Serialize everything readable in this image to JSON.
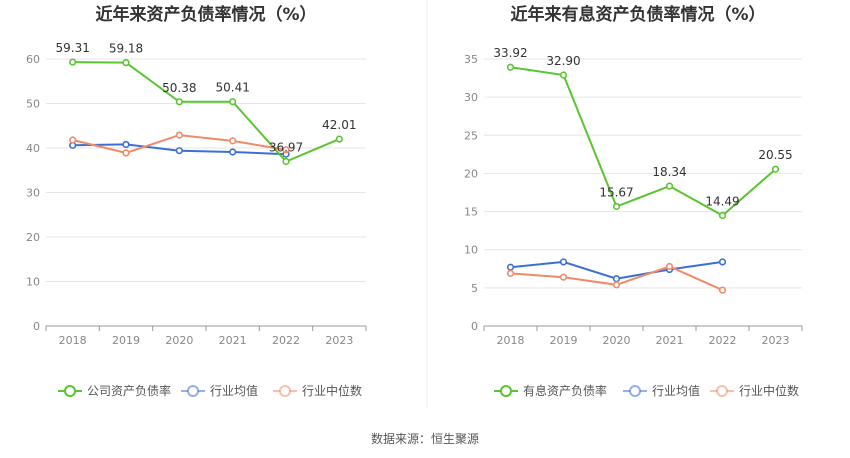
{
  "colors": {
    "company": "#5ac532",
    "industry_avg": "#3b6fd6",
    "industry_median": "#f08a68"
  },
  "source": "数据来源：恒生聚源",
  "chart_data": [
    {
      "type": "line",
      "title": "近年来资产负债率情况（%）",
      "categories": [
        "2018",
        "2019",
        "2020",
        "2021",
        "2022",
        "2023"
      ],
      "ylim": [
        0,
        60
      ],
      "yticks": [
        0,
        10,
        20,
        30,
        40,
        50,
        60
      ],
      "grid": true,
      "legend_position": "bottom",
      "series": [
        {
          "name": "公司资产负债率",
          "color": "#5ac532",
          "values": [
            59.31,
            59.18,
            50.38,
            50.41,
            36.97,
            42.01
          ],
          "labels": [
            "59.31",
            "59.18",
            "50.38",
            "50.41",
            "36.97",
            "42.01"
          ]
        },
        {
          "name": "行业均值",
          "color": "#3b6fd6",
          "values": [
            40.6,
            40.8,
            39.4,
            39.1,
            38.6,
            null
          ]
        },
        {
          "name": "行业中位数",
          "color": "#f08a68",
          "values": [
            41.8,
            38.9,
            42.9,
            41.6,
            39.6,
            null
          ]
        }
      ]
    },
    {
      "type": "line",
      "title": "近年来有息资产负债率情况（%）",
      "categories": [
        "2018",
        "2019",
        "2020",
        "2021",
        "2022",
        "2023"
      ],
      "ylim": [
        0,
        35
      ],
      "yticks": [
        0,
        5,
        10,
        15,
        20,
        25,
        30,
        35
      ],
      "grid": true,
      "legend_position": "bottom",
      "series": [
        {
          "name": "有息资产负债率",
          "color": "#5ac532",
          "values": [
            33.92,
            32.9,
            15.67,
            18.34,
            14.49,
            20.55
          ],
          "labels": [
            "33.92",
            "32.90",
            "15.67",
            "18.34",
            "14.49",
            "20.55"
          ]
        },
        {
          "name": "行业均值",
          "color": "#3b6fd6",
          "values": [
            7.7,
            8.4,
            6.2,
            7.4,
            8.4,
            null
          ]
        },
        {
          "name": "行业中位数",
          "color": "#f08a68",
          "values": [
            6.9,
            6.4,
            5.4,
            7.8,
            4.7,
            null
          ]
        }
      ]
    }
  ]
}
